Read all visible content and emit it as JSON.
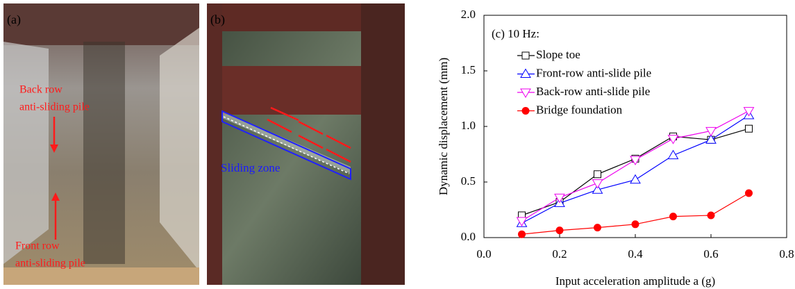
{
  "photos": {
    "a": {
      "label": "(a)",
      "back_pile": [
        "Back row",
        "anti-sliding pile"
      ],
      "front_pile": [
        "Front row",
        "anti-sliding pile"
      ]
    },
    "b": {
      "label": "(b)",
      "zone": "Sliding zone"
    }
  },
  "chart_data": {
    "type": "line",
    "annotation": "(c) 10 Hz:",
    "x_label": "Input acceleration amplitude a (g)",
    "y_label": "Dynamic displacement (mm)",
    "x": [
      0.1,
      0.2,
      0.3,
      0.4,
      0.5,
      0.6,
      0.7
    ],
    "series": [
      {
        "name": "Slope toe",
        "color": "#000000",
        "marker": "square",
        "filled": false,
        "values": [
          0.2,
          0.32,
          0.57,
          0.71,
          0.91,
          0.88,
          0.98
        ]
      },
      {
        "name": "Front-row anti-slide pile",
        "color": "#0000ff",
        "marker": "triangle",
        "filled": false,
        "values": [
          0.13,
          0.31,
          0.43,
          0.52,
          0.74,
          0.88,
          1.1
        ]
      },
      {
        "name": "Back-row anti-slide pile",
        "color": "#ee00ee",
        "marker": "triangle-down",
        "filled": false,
        "values": [
          0.15,
          0.36,
          0.49,
          0.7,
          0.89,
          0.96,
          1.14
        ]
      },
      {
        "name": "Bridge foundation",
        "color": "#ff0000",
        "marker": "circle",
        "filled": true,
        "values": [
          0.03,
          0.065,
          0.09,
          0.12,
          0.19,
          0.2,
          0.4
        ]
      }
    ],
    "xlim": [
      0,
      0.8
    ],
    "xticks": [
      {
        "value": 0,
        "label": "0.0"
      },
      0.2,
      0.4,
      0.6,
      0.8
    ],
    "ylim": [
      0,
      2
    ],
    "yticks": [
      {
        "value": 0,
        "label": "0.0"
      },
      0.5,
      {
        "value": 1,
        "label": "1.0"
      },
      1.5,
      {
        "value": 2,
        "label": "2.0"
      }
    ],
    "grid": false,
    "legend": "upper-left"
  }
}
